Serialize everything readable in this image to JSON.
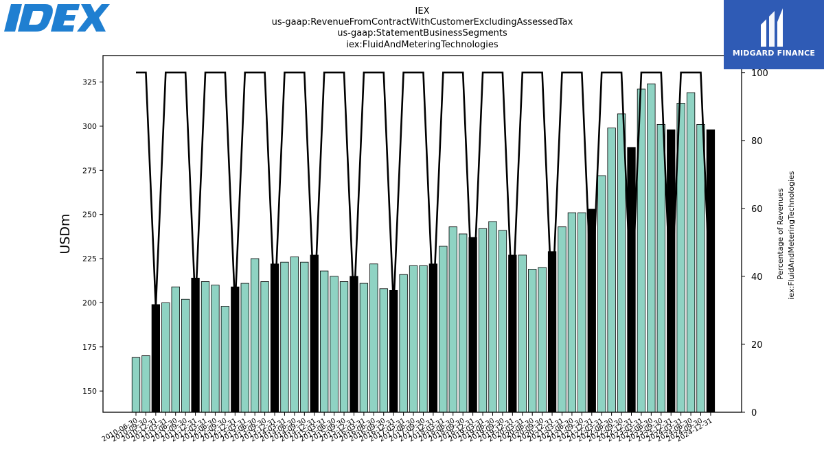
{
  "header": {
    "title_lines": [
      "IEX",
      "us-gaap:RevenueFromContractWithCustomerExcludingAssessedTax",
      "us-gaap:StatementBusinessSegments",
      "iex:FluidAndMeteringTechnologies"
    ]
  },
  "logos": {
    "left_text": "IDEX",
    "left_color": "#1f7fd1",
    "right_text": "MIDGARD FINANCE",
    "right_bg": "#2f5bb5"
  },
  "chart_data": {
    "type": "bar",
    "ylabel": "USDm",
    "y2label_lines": [
      "Percentage of Revenues",
      "iex:FluidAndMeteringTechnologies"
    ],
    "ylim": [
      138,
      340
    ],
    "y2lim": [
      0,
      105
    ],
    "yticks": [
      150,
      175,
      200,
      225,
      250,
      275,
      300,
      325
    ],
    "y2ticks": [
      0,
      20,
      40,
      60,
      80,
      100
    ],
    "colors": {
      "quarter": "#8fd3c3",
      "annual": "#000000",
      "line": "#000000"
    },
    "categories": [
      "2010-06-30",
      "2010-09-30",
      "2010-12-31",
      "2011-03-31",
      "2011-06-30",
      "2011-09-30",
      "2011-12-31",
      "2012-03-31",
      "2012-06-30",
      "2012-09-30",
      "2012-12-31",
      "2013-03-31",
      "2013-06-30",
      "2013-09-30",
      "2013-12-31",
      "2014-03-31",
      "2014-06-30",
      "2014-09-30",
      "2014-12-31",
      "2015-03-31",
      "2015-06-30",
      "2015-09-30",
      "2015-12-31",
      "2016-03-31",
      "2016-06-30",
      "2016-09-30",
      "2016-12-31",
      "2017-03-31",
      "2017-06-30",
      "2017-09-30",
      "2017-12-31",
      "2018-03-31",
      "2018-06-30",
      "2018-09-30",
      "2018-12-31",
      "2019-03-31",
      "2019-06-30",
      "2019-09-30",
      "2019-12-31",
      "2020-03-31",
      "2020-06-30",
      "2020-09-30",
      "2020-12-31",
      "2021-03-31",
      "2021-06-30",
      "2021-09-30",
      "2021-12-31",
      "2022-03-31",
      "2022-06-30",
      "2022-09-30",
      "2022-12-31",
      "2023-03-31",
      "2023-06-30",
      "2023-09-30",
      "2023-12-31",
      "2024-03-31",
      "2024-06-30",
      "2024-09-30",
      "2024-12-31"
    ],
    "values": [
      169,
      170,
      199,
      200,
      209,
      202,
      214,
      212,
      210,
      198,
      209,
      211,
      225,
      212,
      222,
      223,
      226,
      223,
      227,
      218,
      215,
      212,
      215,
      211,
      222,
      208,
      207,
      216,
      221,
      221,
      222,
      232,
      243,
      239,
      237,
      242,
      246,
      241,
      227,
      227,
      219,
      220,
      229,
      243,
      251,
      251,
      253,
      272,
      299,
      307,
      288,
      321,
      324,
      301,
      298,
      313,
      319,
      301,
      298
    ],
    "annual": [
      false,
      false,
      true,
      false,
      false,
      false,
      true,
      false,
      false,
      false,
      true,
      false,
      false,
      false,
      true,
      false,
      false,
      false,
      true,
      false,
      false,
      false,
      true,
      false,
      false,
      false,
      true,
      false,
      false,
      false,
      true,
      false,
      false,
      false,
      true,
      false,
      false,
      false,
      true,
      false,
      false,
      false,
      true,
      false,
      false,
      false,
      true,
      false,
      false,
      false,
      true,
      false,
      false,
      false,
      true,
      false,
      false,
      false,
      true
    ],
    "percentage": [
      100,
      100,
      31,
      100,
      100,
      100,
      31,
      100,
      100,
      100,
      31,
      100,
      100,
      100,
      31,
      100,
      100,
      100,
      31,
      100,
      100,
      100,
      31,
      100,
      100,
      100,
      31,
      100,
      100,
      100,
      31,
      100,
      100,
      100,
      31,
      100,
      100,
      100,
      31,
      100,
      100,
      100,
      31,
      100,
      100,
      100,
      31,
      100,
      100,
      100,
      31,
      100,
      100,
      100,
      31,
      100,
      100,
      100,
      31
    ]
  }
}
